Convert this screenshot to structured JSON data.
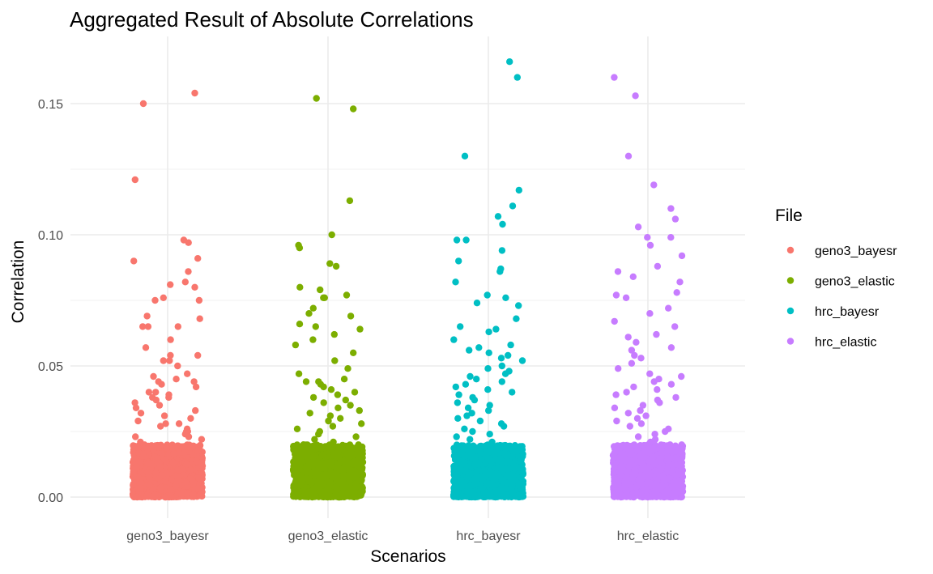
{
  "chart_data": {
    "type": "scatter",
    "title": "Aggregated Result of Absolute Correlations",
    "xlabel": "Scenarios",
    "ylabel": "Correlation",
    "categories": [
      "geno3_bayesr",
      "geno3_elastic",
      "hrc_bayesr",
      "hrc_elastic"
    ],
    "yticks": [
      "0.00",
      "0.05",
      "0.10",
      "0.15"
    ],
    "ylim": [
      -0.003,
      0.173
    ],
    "grid": true,
    "legend": {
      "title": "File",
      "placement": "right",
      "entries": [
        "geno3_bayesr",
        "geno3_elastic",
        "hrc_bayesr",
        "hrc_elastic"
      ]
    },
    "colors": {
      "geno3_bayesr": "#F8766D",
      "geno3_elastic": "#7CAE00",
      "hrc_bayesr": "#00BFC4",
      "hrc_elastic": "#C77CFF"
    },
    "series": [
      {
        "name": "geno3_bayesr",
        "x": "geno3_bayesr",
        "values": [
          0.154,
          0.15,
          0.121,
          0.098,
          0.097,
          0.091,
          0.09,
          0.086,
          0.082,
          0.081,
          0.08,
          0.076,
          0.075,
          0.075,
          0.069,
          0.068,
          0.065,
          0.065,
          0.065,
          0.06,
          0.057,
          0.054,
          0.054,
          0.052,
          0.052,
          0.05,
          0.047,
          0.046,
          0.045,
          0.044,
          0.044,
          0.043,
          0.042,
          0.04,
          0.04,
          0.039,
          0.038,
          0.038,
          0.037,
          0.036,
          0.035,
          0.034,
          0.033,
          0.032,
          0.031,
          0.03,
          0.029,
          0.028,
          0.028,
          0.027,
          0.026,
          0.025,
          0.025,
          0.024,
          0.023,
          0.023,
          0.022,
          0.021
        ]
      },
      {
        "name": "geno3_elastic",
        "x": "geno3_elastic",
        "values": [
          0.152,
          0.148,
          0.113,
          0.1,
          0.096,
          0.095,
          0.089,
          0.088,
          0.08,
          0.079,
          0.077,
          0.076,
          0.076,
          0.072,
          0.07,
          0.069,
          0.066,
          0.065,
          0.064,
          0.062,
          0.06,
          0.058,
          0.055,
          0.052,
          0.049,
          0.047,
          0.045,
          0.044,
          0.044,
          0.043,
          0.042,
          0.041,
          0.04,
          0.039,
          0.038,
          0.037,
          0.036,
          0.035,
          0.034,
          0.033,
          0.032,
          0.031,
          0.03,
          0.029,
          0.028,
          0.027,
          0.026,
          0.025,
          0.024,
          0.023,
          0.022,
          0.021
        ]
      },
      {
        "name": "hrc_bayesr",
        "x": "hrc_bayesr",
        "values": [
          0.166,
          0.16,
          0.13,
          0.117,
          0.111,
          0.107,
          0.104,
          0.098,
          0.098,
          0.094,
          0.09,
          0.087,
          0.086,
          0.082,
          0.077,
          0.076,
          0.074,
          0.073,
          0.068,
          0.065,
          0.064,
          0.063,
          0.06,
          0.058,
          0.057,
          0.056,
          0.055,
          0.054,
          0.053,
          0.052,
          0.05,
          0.049,
          0.048,
          0.047,
          0.046,
          0.045,
          0.044,
          0.043,
          0.042,
          0.041,
          0.04,
          0.039,
          0.038,
          0.037,
          0.036,
          0.035,
          0.034,
          0.033,
          0.032,
          0.031,
          0.03,
          0.029,
          0.028,
          0.027,
          0.026,
          0.025,
          0.024,
          0.023,
          0.022,
          0.021
        ]
      },
      {
        "name": "hrc_elastic",
        "x": "hrc_elastic",
        "values": [
          0.16,
          0.153,
          0.13,
          0.119,
          0.11,
          0.106,
          0.103,
          0.099,
          0.099,
          0.096,
          0.092,
          0.088,
          0.086,
          0.084,
          0.082,
          0.078,
          0.077,
          0.076,
          0.072,
          0.07,
          0.067,
          0.065,
          0.062,
          0.061,
          0.059,
          0.057,
          0.056,
          0.054,
          0.053,
          0.051,
          0.049,
          0.047,
          0.046,
          0.045,
          0.044,
          0.043,
          0.042,
          0.041,
          0.04,
          0.039,
          0.038,
          0.037,
          0.036,
          0.035,
          0.034,
          0.033,
          0.032,
          0.031,
          0.03,
          0.029,
          0.028,
          0.027,
          0.026,
          0.025,
          0.024,
          0.023,
          0.022,
          0.021
        ]
      }
    ],
    "dense_band": {
      "ymin": 0.0,
      "ymax": 0.02
    }
  }
}
